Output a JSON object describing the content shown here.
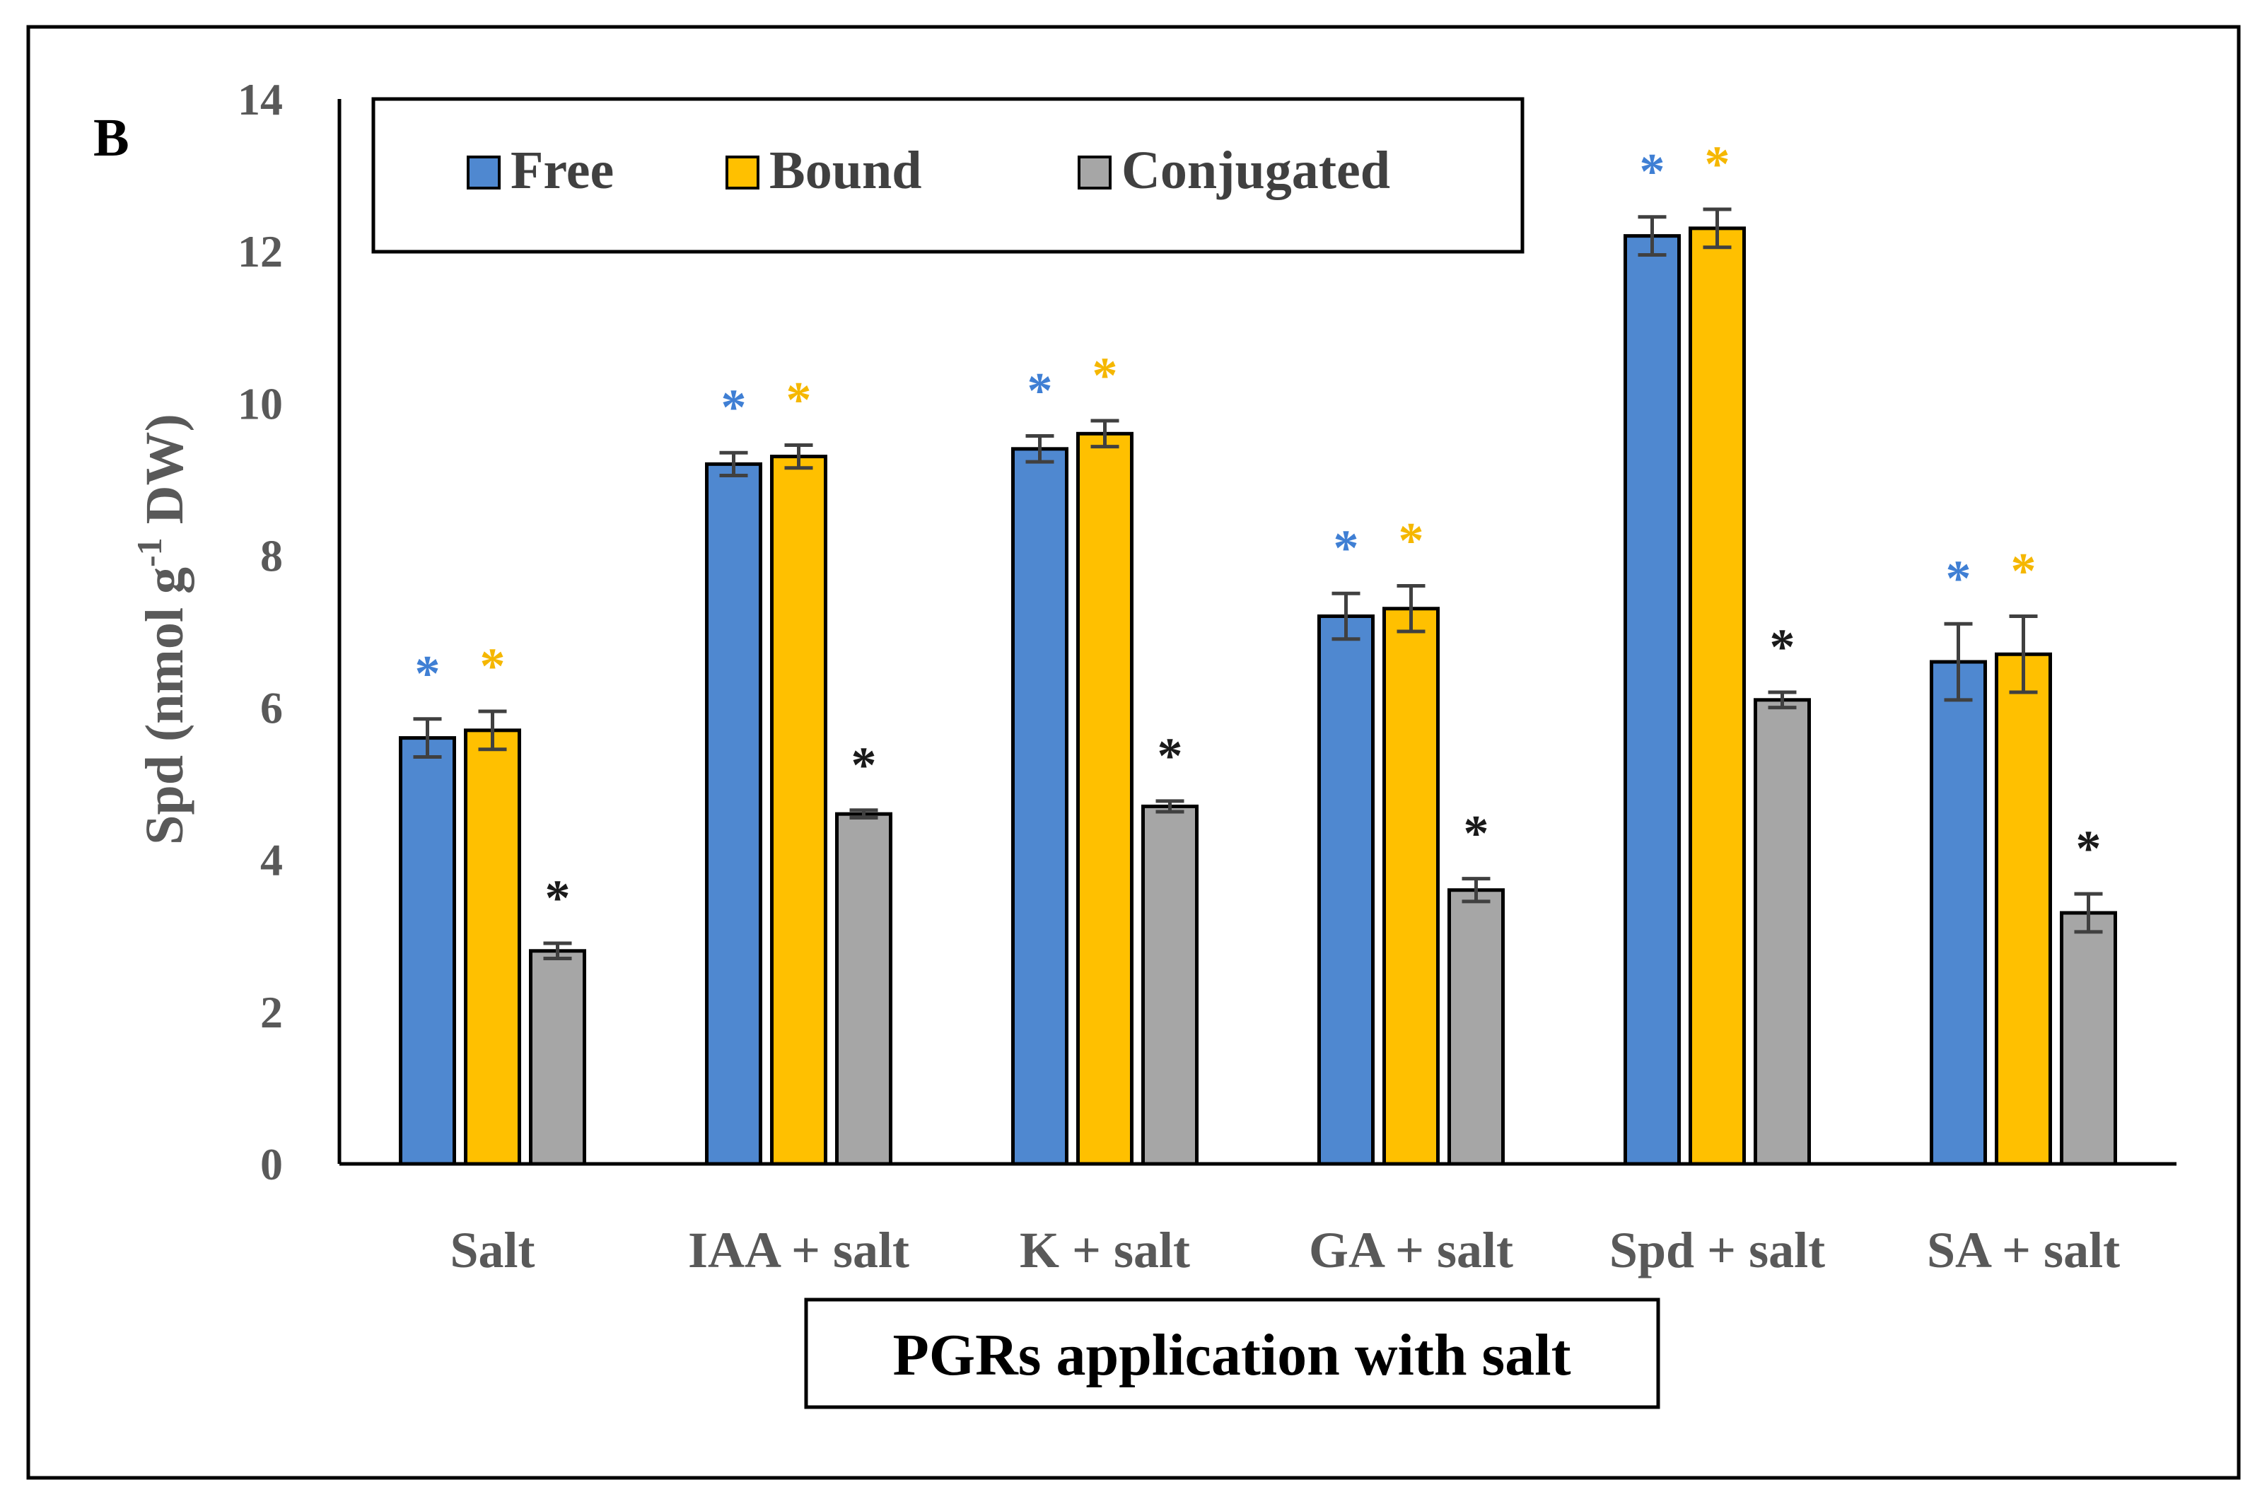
{
  "panel_label": "B",
  "chart_data": {
    "type": "bar",
    "title": "",
    "xlabel": "PGRs application with salt",
    "ylabel": "Spd (nmol g-1 DW)",
    "ylabel_parts": {
      "main": "Spd (nmol g",
      "sup": "-1",
      "tail": " DW)"
    },
    "ylim": [
      0,
      14
    ],
    "yticks": [
      0,
      2,
      4,
      6,
      8,
      10,
      12,
      14
    ],
    "legend_position": "top-left",
    "categories": [
      "Salt",
      "IAA + salt",
      "K + salt",
      "GA + salt",
      "Spd + salt",
      "SA + salt"
    ],
    "series": [
      {
        "name": "Free",
        "color": "#4F88D0",
        "star_color": "#3F7FD4",
        "values": [
          5.6,
          9.2,
          9.4,
          7.2,
          12.2,
          6.6
        ],
        "errors": [
          0.25,
          0.15,
          0.17,
          0.3,
          0.25,
          0.5
        ],
        "stars": [
          "*",
          "*",
          "*",
          "*",
          "*",
          "*"
        ]
      },
      {
        "name": "Bound",
        "color": "#FFC000",
        "star_color": "#F5B700",
        "values": [
          5.7,
          9.3,
          9.6,
          7.3,
          12.3,
          6.7
        ],
        "errors": [
          0.25,
          0.15,
          0.17,
          0.3,
          0.25,
          0.5
        ],
        "stars": [
          "*",
          "*",
          "*",
          "*",
          "*",
          "*"
        ]
      },
      {
        "name": "Conjugated",
        "color": "#A6A6A6",
        "star_color": "#1A1A1A",
        "values": [
          2.8,
          4.6,
          4.7,
          3.6,
          6.1,
          3.3
        ],
        "errors": [
          0.1,
          0.05,
          0.07,
          0.15,
          0.1,
          0.25
        ],
        "stars": [
          "*",
          "*",
          "*",
          "*",
          "*",
          "*"
        ]
      }
    ]
  }
}
